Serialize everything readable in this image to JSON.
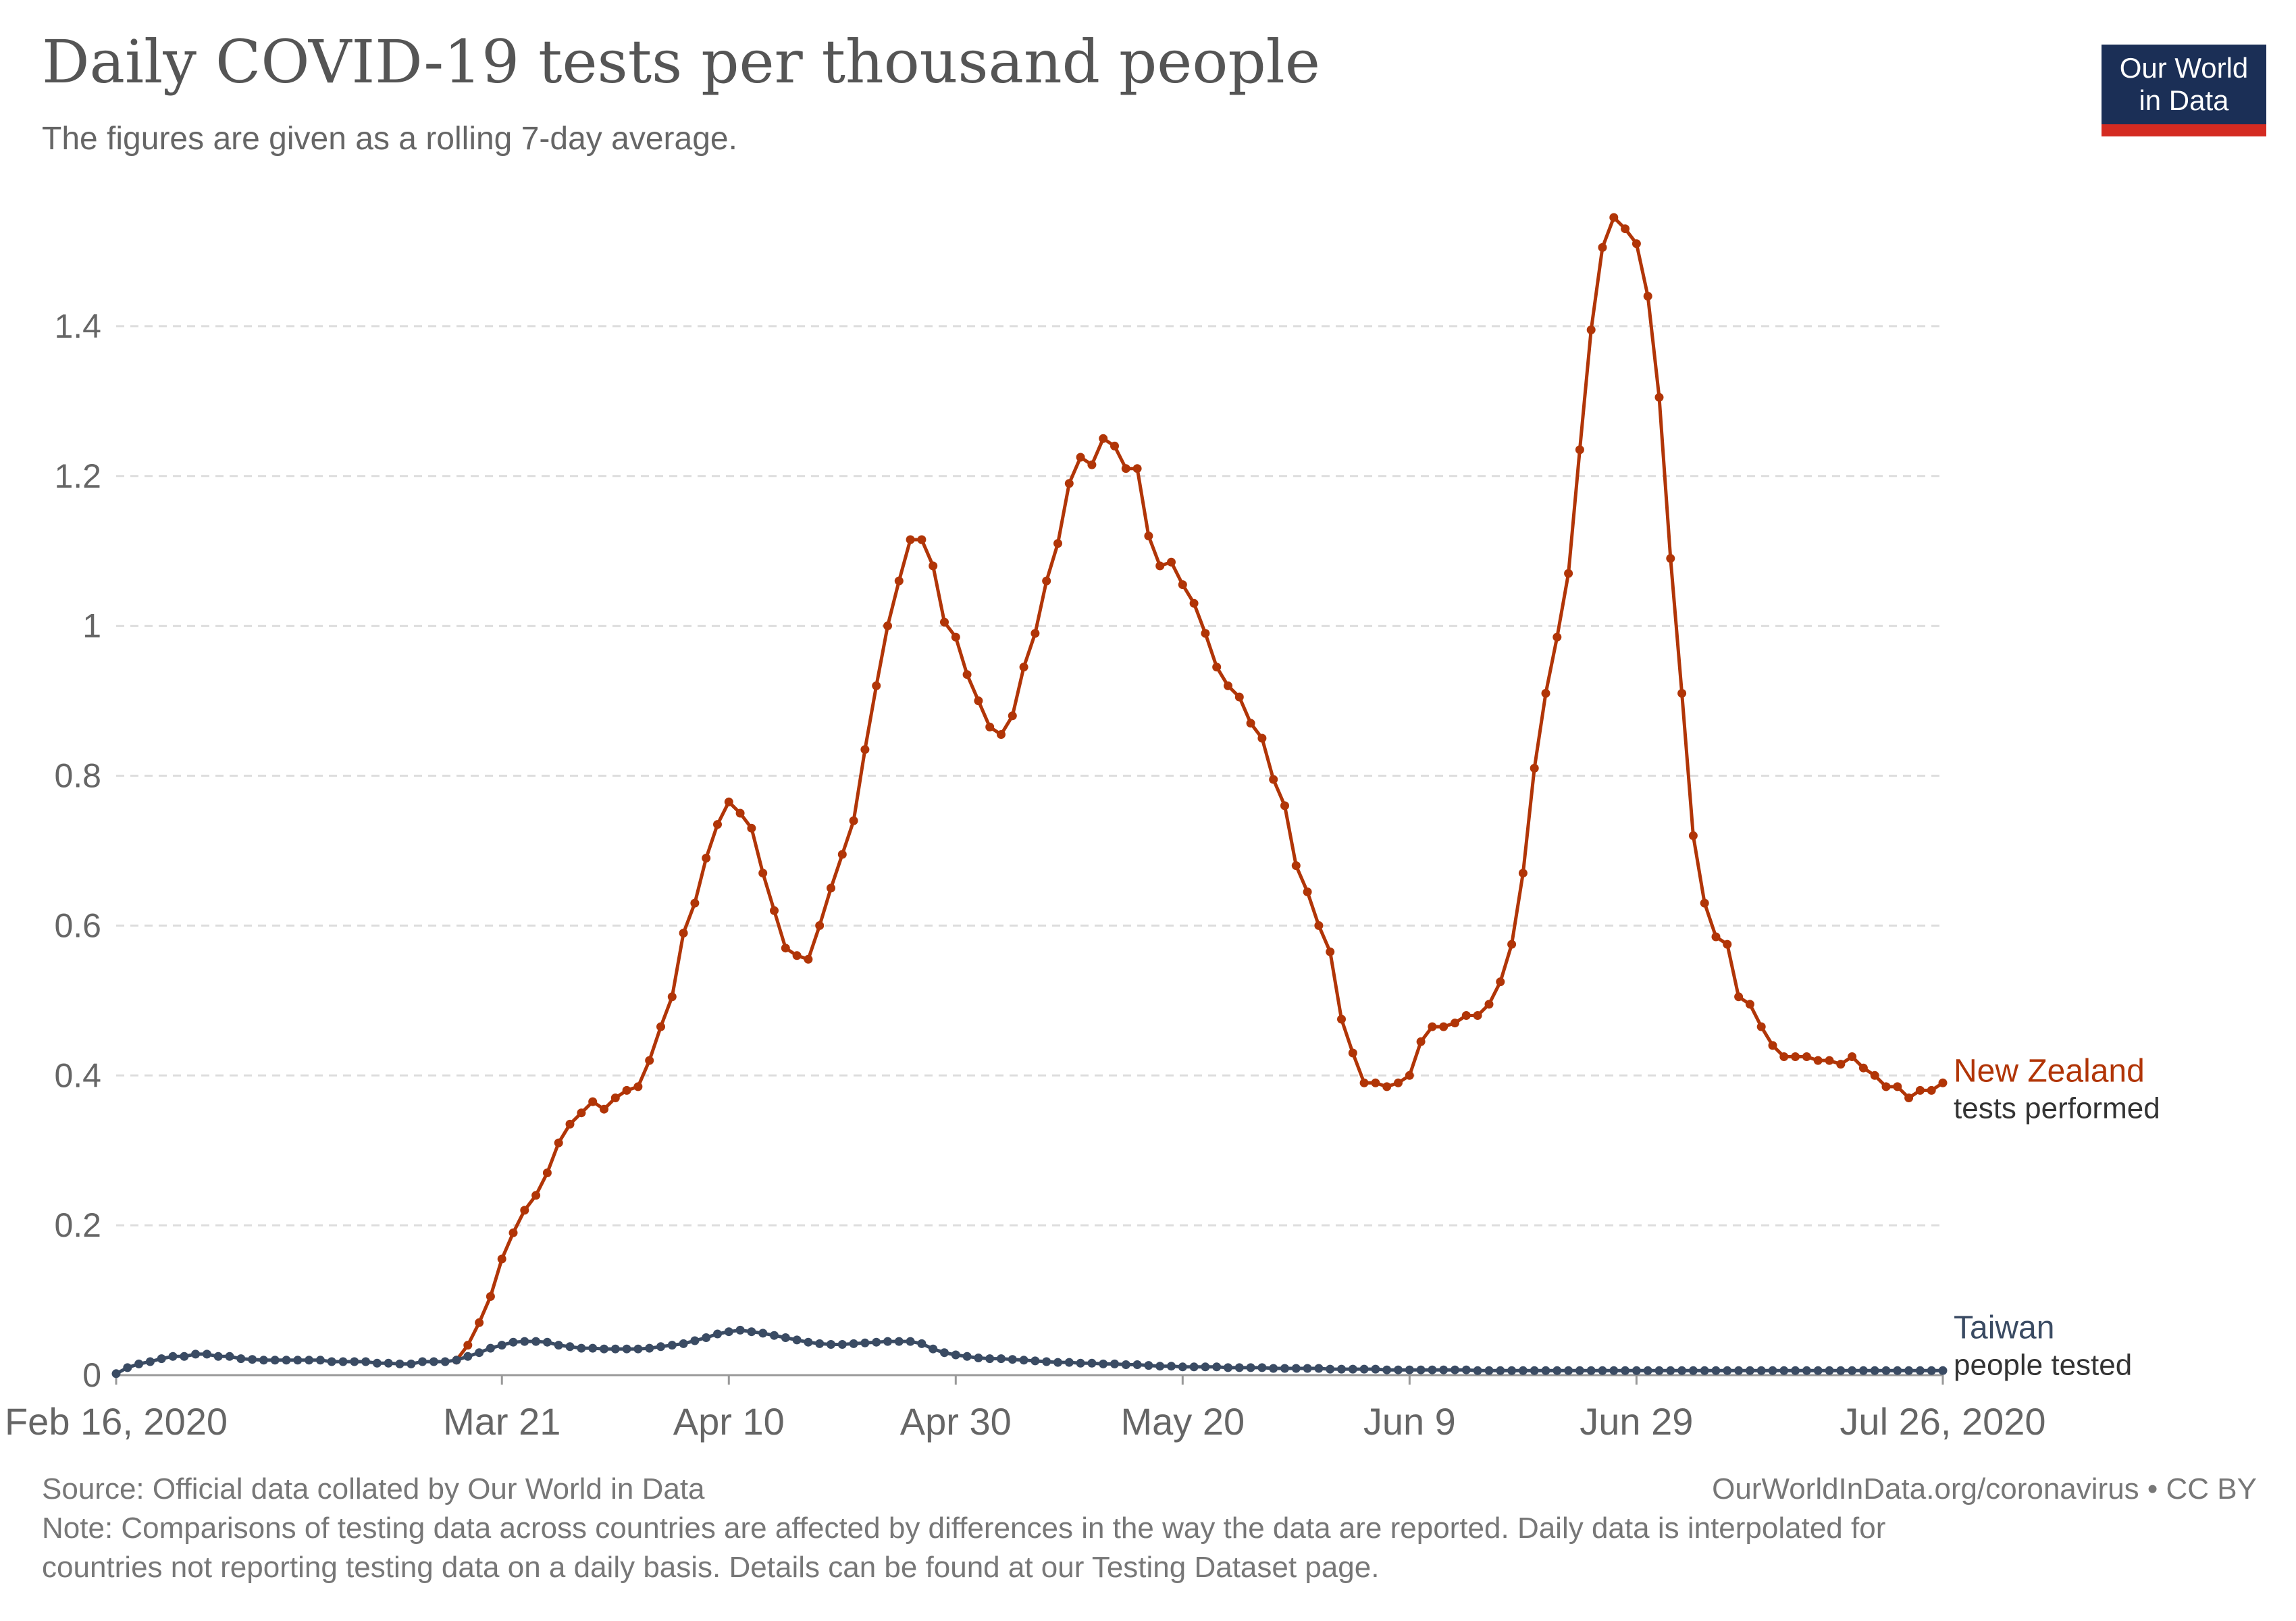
{
  "header": {
    "title": "Daily COVID-19 tests per thousand people",
    "subtitle": "The figures are given as a rolling 7-day average."
  },
  "logo": {
    "line1": "Our World",
    "line2": "in Data",
    "bg_color": "#1b2f56",
    "accent_color": "#d42b21"
  },
  "footer": {
    "source": "Source: Official data collated by Our World in Data",
    "license": "OurWorldInData.org/coronavirus • CC BY",
    "note_line1": "Note: Comparisons of testing data across countries are affected by differences in the way the data are reported. Daily data is interpolated for",
    "note_line2": "countries not reporting testing data on a daily basis. Details can be found at our Testing Dataset page."
  },
  "chart_data": {
    "type": "line",
    "title": "Daily COVID-19 tests per thousand people",
    "subtitle": "The figures are given as a rolling 7-day average.",
    "xlabel": "",
    "ylabel": "",
    "x_start": "2020-02-16",
    "x_end": "2020-07-26",
    "ylim": [
      0,
      1.6
    ],
    "y_ticks": [
      0,
      0.2,
      0.4,
      0.6,
      0.8,
      1,
      1.2,
      1.4
    ],
    "y_tick_labels": [
      "0",
      "0.2",
      "0.4",
      "0.6",
      "0.8",
      "1",
      "1.2",
      "1.4"
    ],
    "x_tick_dates": [
      "2020-02-16",
      "2020-03-21",
      "2020-04-10",
      "2020-04-30",
      "2020-05-20",
      "2020-06-09",
      "2020-06-29",
      "2020-07-26"
    ],
    "x_tick_labels": [
      "Feb 16, 2020",
      "Mar 21",
      "Apr 10",
      "Apr 30",
      "May 20",
      "Jun 9",
      "Jun 29",
      "Jul 26, 2020"
    ],
    "grid": "horizontal dashed",
    "legend": "right of lines",
    "series": [
      {
        "name": "New Zealand",
        "sublabel": "tests performed",
        "color": "#b13507",
        "start_date": "2020-03-17",
        "values": [
          0.02,
          0.04,
          0.07,
          0.105,
          0.155,
          0.19,
          0.22,
          0.24,
          0.27,
          0.31,
          0.335,
          0.35,
          0.365,
          0.355,
          0.37,
          0.38,
          0.385,
          0.42,
          0.465,
          0.505,
          0.59,
          0.63,
          0.69,
          0.735,
          0.765,
          0.75,
          0.73,
          0.67,
          0.62,
          0.57,
          0.56,
          0.555,
          0.6,
          0.65,
          0.695,
          0.74,
          0.835,
          0.92,
          1.0,
          1.06,
          1.115,
          1.115,
          1.08,
          1.005,
          0.985,
          0.935,
          0.9,
          0.865,
          0.855,
          0.88,
          0.945,
          0.99,
          1.06,
          1.11,
          1.19,
          1.225,
          1.215,
          1.25,
          1.24,
          1.21,
          1.21,
          1.12,
          1.08,
          1.085,
          1.055,
          1.03,
          0.99,
          0.945,
          0.92,
          0.905,
          0.87,
          0.85,
          0.795,
          0.76,
          0.68,
          0.645,
          0.6,
          0.565,
          0.475,
          0.43,
          0.39,
          0.39,
          0.385,
          0.39,
          0.4,
          0.445,
          0.465,
          0.465,
          0.47,
          0.48,
          0.48,
          0.495,
          0.525,
          0.575,
          0.67,
          0.81,
          0.91,
          0.985,
          1.07,
          1.235,
          1.395,
          1.505,
          1.545,
          1.53,
          1.51,
          1.44,
          1.305,
          1.09,
          0.91,
          0.72,
          0.63,
          0.585,
          0.575,
          0.505,
          0.495,
          0.465,
          0.44,
          0.425,
          0.425,
          0.425,
          0.42,
          0.42,
          0.415,
          0.425,
          0.41,
          0.4,
          0.385,
          0.385,
          0.37,
          0.38,
          0.38,
          0.39
        ]
      },
      {
        "name": "Taiwan",
        "sublabel": "people tested",
        "color": "#3a4b63",
        "start_date": "2020-02-16",
        "values": [
          0.002,
          0.01,
          0.015,
          0.018,
          0.022,
          0.025,
          0.025,
          0.028,
          0.028,
          0.025,
          0.025,
          0.022,
          0.021,
          0.02,
          0.02,
          0.02,
          0.02,
          0.02,
          0.02,
          0.018,
          0.018,
          0.018,
          0.018,
          0.016,
          0.016,
          0.015,
          0.015,
          0.018,
          0.018,
          0.018,
          0.02,
          0.025,
          0.03,
          0.036,
          0.04,
          0.044,
          0.045,
          0.045,
          0.044,
          0.04,
          0.038,
          0.036,
          0.036,
          0.035,
          0.035,
          0.035,
          0.035,
          0.036,
          0.038,
          0.04,
          0.042,
          0.046,
          0.05,
          0.055,
          0.058,
          0.06,
          0.058,
          0.056,
          0.053,
          0.05,
          0.047,
          0.044,
          0.042,
          0.041,
          0.041,
          0.042,
          0.043,
          0.044,
          0.045,
          0.045,
          0.045,
          0.042,
          0.035,
          0.03,
          0.027,
          0.025,
          0.023,
          0.022,
          0.022,
          0.021,
          0.02,
          0.019,
          0.018,
          0.017,
          0.017,
          0.016,
          0.016,
          0.015,
          0.015,
          0.014,
          0.014,
          0.013,
          0.012,
          0.012,
          0.011,
          0.011,
          0.011,
          0.011,
          0.01,
          0.01,
          0.01,
          0.01,
          0.009,
          0.009,
          0.009,
          0.009,
          0.009,
          0.008,
          0.008,
          0.008,
          0.008,
          0.008,
          0.007,
          0.007,
          0.007,
          0.007,
          0.007,
          0.007,
          0.007,
          0.007,
          0.006,
          0.006,
          0.006,
          0.006,
          0.006,
          0.006,
          0.006,
          0.006,
          0.006,
          0.006,
          0.006,
          0.006,
          0.006,
          0.006,
          0.006,
          0.006,
          0.006,
          0.006,
          0.006,
          0.006,
          0.006,
          0.006,
          0.006,
          0.006,
          0.006,
          0.006,
          0.006,
          0.006,
          0.006,
          0.006,
          0.006,
          0.006,
          0.006,
          0.006,
          0.006,
          0.006,
          0.006,
          0.006,
          0.006,
          0.006,
          0.006,
          0.006
        ]
      }
    ]
  }
}
